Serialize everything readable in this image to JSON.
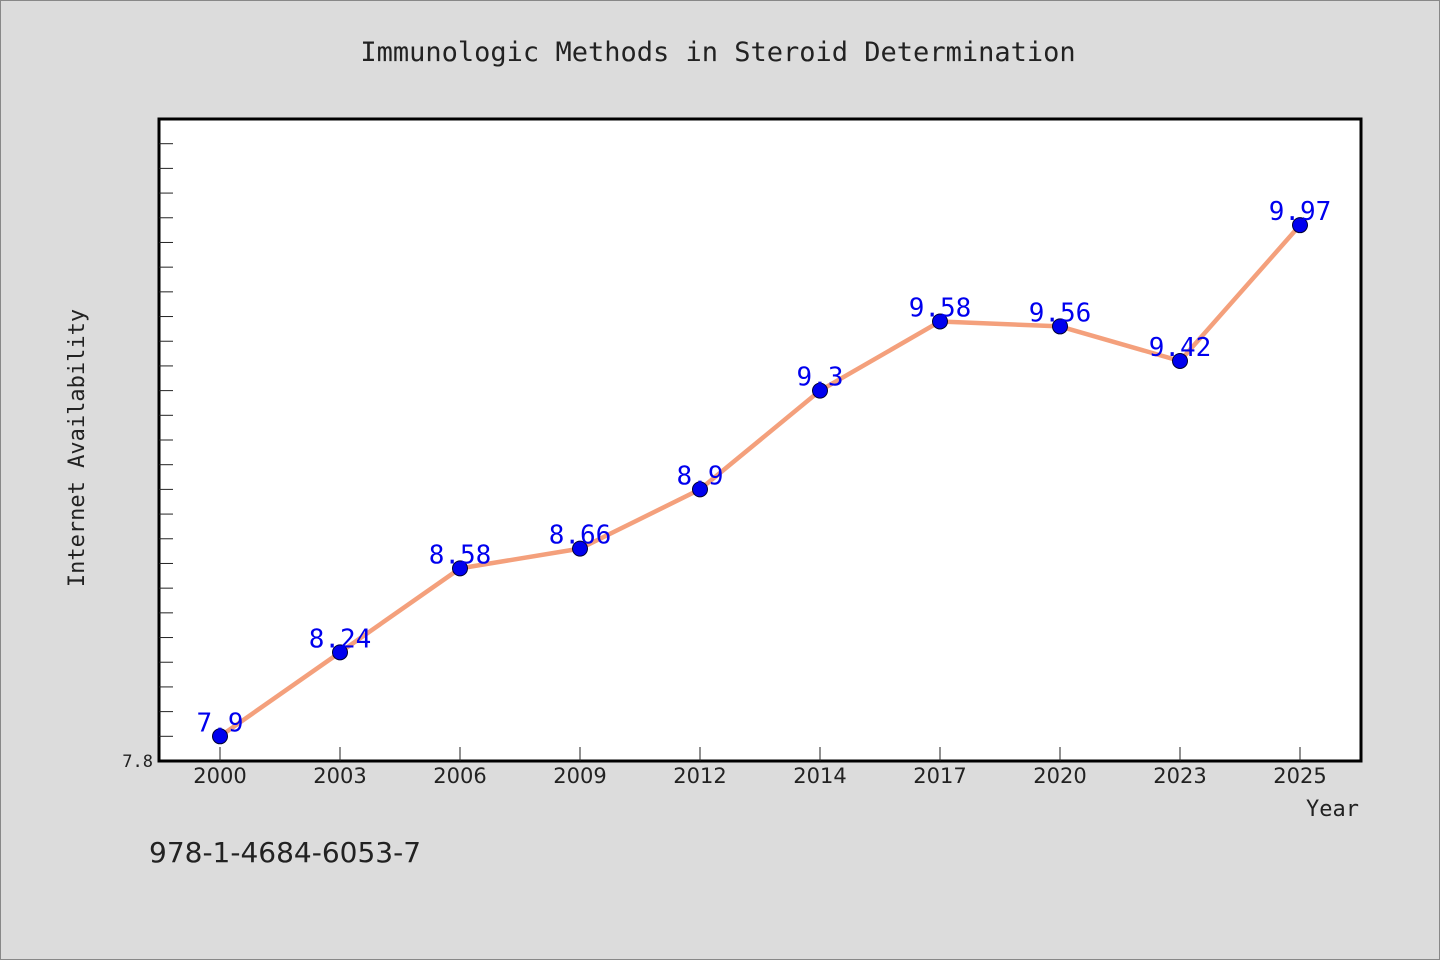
{
  "chart_data": {
    "type": "line",
    "title": "Immunologic Methods in Steroid Determination",
    "xlabel": "Year",
    "ylabel": "Internet Availability",
    "categories": [
      "2000",
      "2003",
      "2006",
      "2009",
      "2012",
      "2014",
      "2017",
      "2020",
      "2023",
      "2025"
    ],
    "series": [
      {
        "values": [
          7.9,
          8.24,
          8.58,
          8.66,
          8.9,
          9.3,
          9.58,
          9.56,
          9.42,
          9.97
        ]
      }
    ],
    "data_labels": [
      "7.9",
      "8.24",
      "8.58",
      "8.66",
      "8.9",
      "9.3",
      "9.58",
      "9.56",
      "9.42",
      "9.97"
    ],
    "y_tick_labels": [
      "7.8"
    ],
    "ylim": [
      7.8,
      10.4
    ],
    "grid": false,
    "legend": "none",
    "colors": {
      "line": "#f4a07c",
      "marker": "#0000ee",
      "data_label": "#0000ee",
      "plot_background": "#ffffff",
      "page_background": "#dcdcdc"
    }
  },
  "footer": {
    "isbn": "978-1-4684-6053-7"
  }
}
